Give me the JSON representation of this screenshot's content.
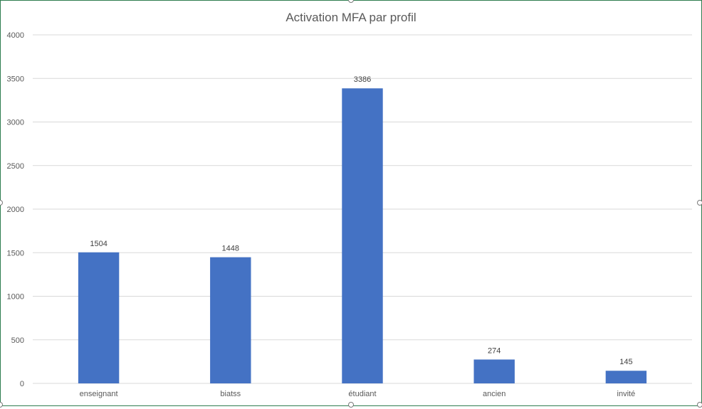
{
  "chart_data": {
    "type": "bar",
    "title": "Activation MFA par profil",
    "categories": [
      "enseignant",
      "biatss",
      "étudiant",
      "ancien",
      "invité"
    ],
    "values": [
      1504,
      1448,
      3386,
      274,
      145
    ],
    "data_labels": [
      "1504",
      "1448",
      "3386",
      "274",
      "145"
    ],
    "xlabel": "",
    "ylabel": "",
    "ylim": [
      0,
      4000
    ],
    "yticks": [
      0,
      500,
      1000,
      1500,
      2000,
      2500,
      3000,
      3500,
      4000
    ],
    "grid": true,
    "legend": "none",
    "bar_color": "#4472c4",
    "grid_color": "#d9d9d9"
  }
}
